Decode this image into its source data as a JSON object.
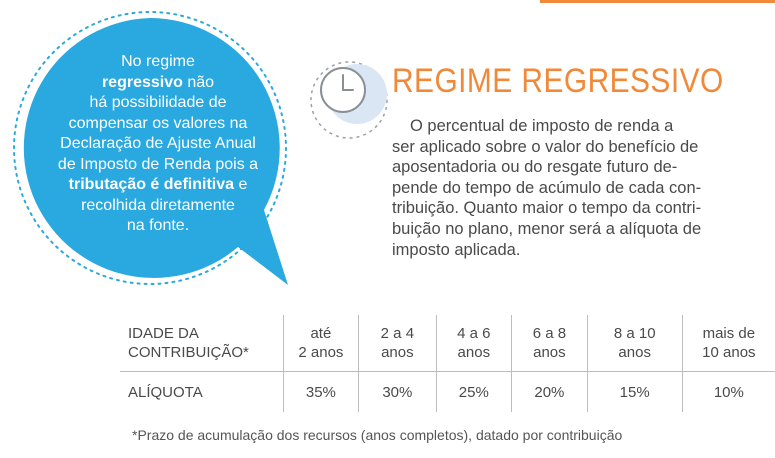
{
  "bubble": {
    "lines": [
      {
        "pre": "No regime",
        "bold": "",
        "post": ""
      },
      {
        "pre": "",
        "bold": "regressivo",
        "post": " não"
      },
      {
        "pre": "há possibilidade de",
        "bold": "",
        "post": ""
      },
      {
        "pre": "compensar os valores na",
        "bold": "",
        "post": ""
      },
      {
        "pre": "Declaração de Ajuste Anual",
        "bold": "",
        "post": ""
      },
      {
        "pre": "de Imposto de Renda pois a",
        "bold": "",
        "post": ""
      },
      {
        "pre": "",
        "bold": "tributação é definitiva",
        "post": " e"
      },
      {
        "pre": "recolhida diretamente",
        "bold": "",
        "post": ""
      },
      {
        "pre": "na fonte.",
        "bold": "",
        "post": ""
      }
    ]
  },
  "title": "REGIME REGRESSIVO",
  "body_lines": [
    "O percentual de imposto de renda a",
    "ser aplicado sobre o valor do benefício de",
    "aposentadoria ou do resgate futuro de-",
    "pende do tempo de acúmulo de cada con-",
    "tribuição. Quanto maior o tempo da contri-",
    "buição no plano, menor será a alíquota de",
    "imposto aplicada."
  ],
  "table": {
    "header_label": [
      "IDADE DA",
      "CONTRIBUIÇÃO*"
    ],
    "columns": [
      [
        "até",
        "2 anos"
      ],
      [
        "2 a 4",
        "anos"
      ],
      [
        "4 a 6",
        "anos"
      ],
      [
        "6 a 8",
        "anos"
      ],
      [
        "8 a 10",
        "anos"
      ],
      [
        "mais de",
        "10 anos"
      ]
    ],
    "rate_label": "ALÍQUOTA",
    "rates": [
      "35%",
      "30%",
      "25%",
      "20%",
      "15%",
      "10%"
    ]
  },
  "footnote": "*Prazo de acumulação dos recursos (anos completos), datado por contribuição",
  "colors": {
    "accent": "#f08a3a",
    "bubble": "#2aa8e0",
    "clock_fill": "#dbe6f5"
  }
}
